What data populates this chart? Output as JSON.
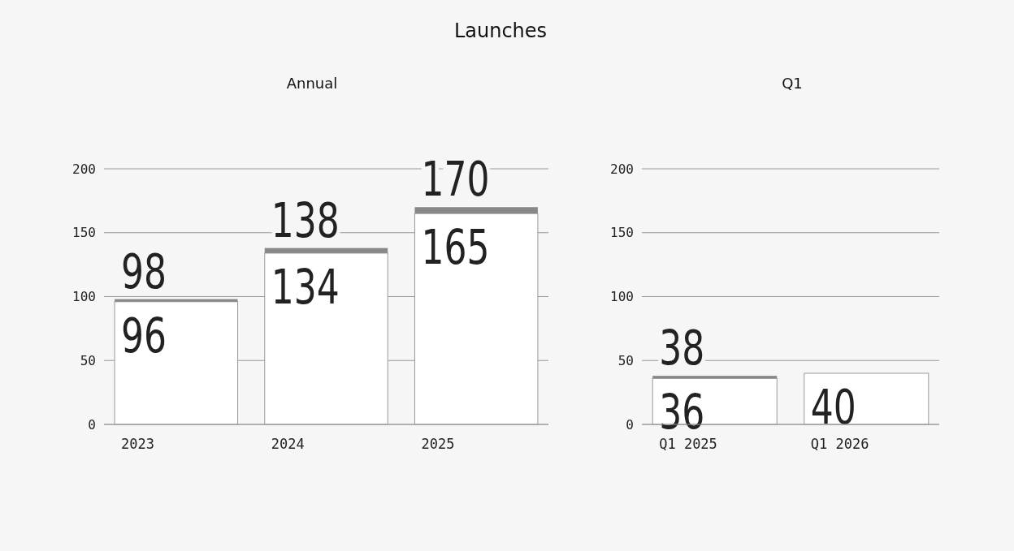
{
  "chart_data": [
    {
      "type": "bar",
      "title": "Launches",
      "subtitle": "Annual",
      "categories": [
        "2023",
        "2024",
        "2025"
      ],
      "stacked": true,
      "ylim": [
        0,
        200
      ],
      "yticks": [
        0,
        50,
        100,
        150,
        200
      ],
      "grid": "y",
      "series": [
        {
          "color": "#ffffff",
          "values": [
            96,
            134,
            165
          ],
          "value_labels": [
            "96",
            "134",
            "165"
          ]
        },
        {
          "color": "#888888",
          "values": [
            2,
            4,
            5
          ]
        }
      ],
      "totals": [
        "98",
        "138",
        "170"
      ]
    },
    {
      "type": "bar",
      "title": "Q1",
      "categories": [
        "Q1 2025",
        "Q1 2026"
      ],
      "stacked": true,
      "ylim": [
        0,
        200
      ],
      "yticks": [
        0,
        50,
        100,
        150,
        200
      ],
      "grid": "y",
      "series": [
        {
          "color": "#ffffff",
          "values": [
            36,
            40
          ],
          "value_labels": [
            "36",
            "40"
          ]
        },
        {
          "color": "#888888",
          "values": [
            2,
            null
          ]
        }
      ],
      "totals": [
        "38",
        null
      ]
    }
  ]
}
